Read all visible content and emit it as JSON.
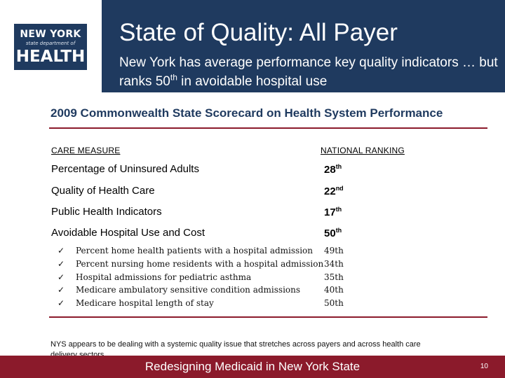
{
  "logo": {
    "line1": "NEW YORK",
    "line2": "state department of",
    "line3": "HEALTH"
  },
  "header": {
    "title": "State of Quality: All Payer",
    "subtitle_pre": "New York has average performance key quality indicators … but ranks 50",
    "subtitle_sup": "th",
    "subtitle_post": " in avoidable hospital use"
  },
  "scorecard": {
    "title": "2009 Commonwealth State Scorecard on Health System Performance",
    "col_measure": "CARE MEASURE",
    "col_ranking": "NATIONAL RANKING",
    "rows": [
      {
        "label": "Percentage of Uninsured Adults",
        "rank": "28",
        "suffix": "th"
      },
      {
        "label": "Quality of Health Care",
        "rank": "22",
        "suffix": "nd"
      },
      {
        "label": "Public Health Indicators",
        "rank": "17",
        "suffix": "th"
      },
      {
        "label": "Avoidable Hospital Use and Cost",
        "rank": "50",
        "suffix": "th"
      }
    ],
    "check_glyph": "✓",
    "subitems": [
      {
        "label": "Percent home health patients with a hospital admission",
        "rank": "49th"
      },
      {
        "label": "Percent nursing home residents with a hospital admission",
        "rank": "34th"
      },
      {
        "label": "Hospital admissions for pediatric asthma",
        "rank": "35th"
      },
      {
        "label": "Medicare ambulatory sensitive condition admissions",
        "rank": "40th"
      },
      {
        "label": "Medicare hospital length of stay",
        "rank": "50th"
      }
    ]
  },
  "note": "NYS appears to be dealing with a systemic quality issue that stretches across payers and across health care delivery sectors.",
  "footer": {
    "text": "Redesigning Medicaid in New York State",
    "page": "10"
  },
  "colors": {
    "header_bg": "#1f3a5f",
    "accent": "#8b1a2b",
    "title_blue": "#1f3a5f"
  }
}
